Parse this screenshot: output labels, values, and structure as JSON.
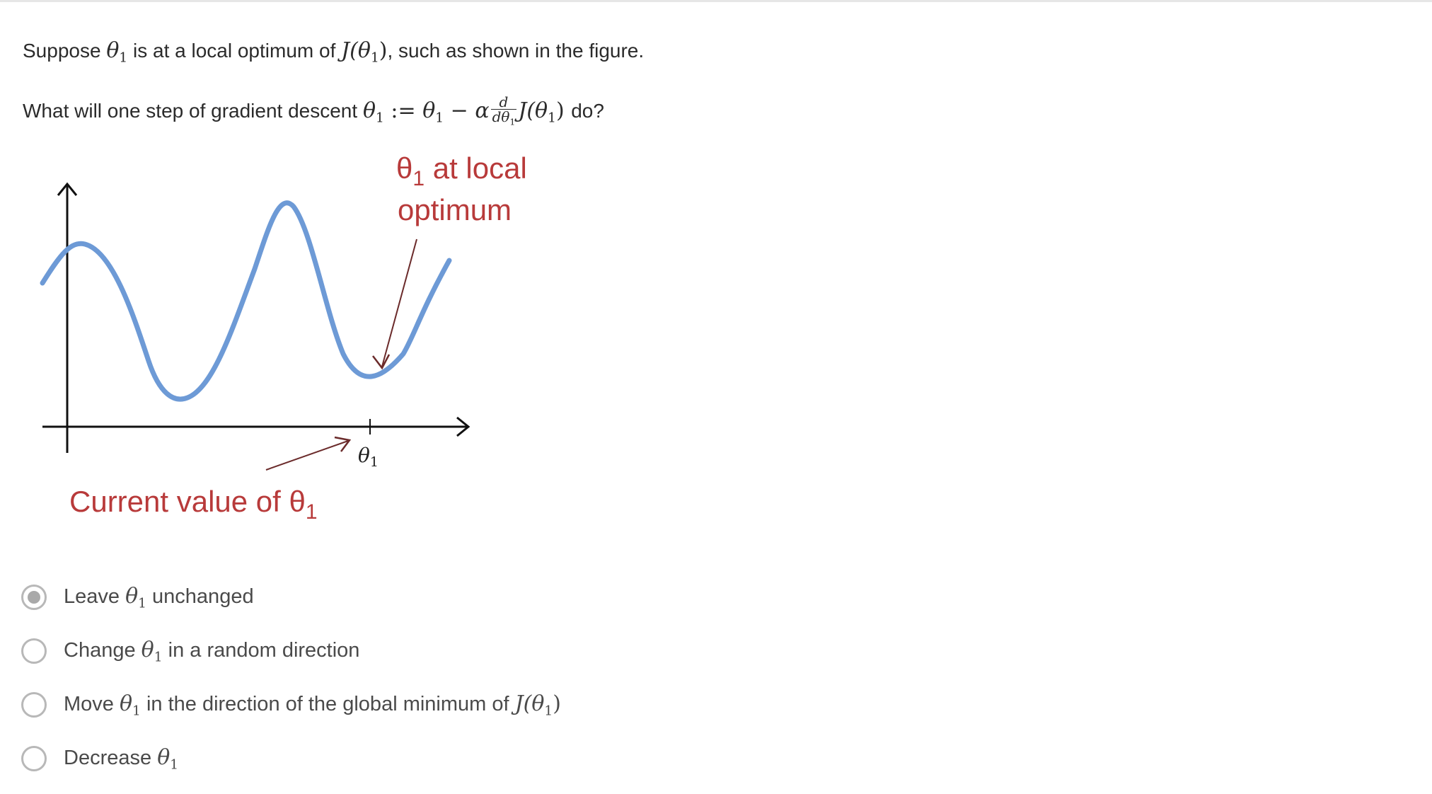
{
  "question": {
    "line1": {
      "prefix": "Suppose",
      "theta": "θ",
      "sub": "1",
      "middle": "is at a local optimum of",
      "J_open": "J(θ",
      "J_close": ")",
      "suffix": ", such as shown in the figure."
    },
    "line2": {
      "prefix": "What will one step of gradient descent",
      "theta": "θ",
      "sub": "1",
      "assign": ":=",
      "theta2": "θ",
      "sub2": "1",
      "minus_alpha": "− α",
      "frac_num": "d",
      "frac_den": "dθ",
      "frac_den_sub": "1",
      "J_open": "J(θ",
      "J_sub": "1",
      "J_close": ")",
      "suffix": "do?"
    }
  },
  "figure": {
    "annotation_top_line1": "θ",
    "annotation_top_sub": "1",
    "annotation_top_rest": " at local",
    "annotation_top_line2": "optimum",
    "annotation_bottom": "Current value of θ",
    "annotation_bottom_sub": "1",
    "axis_label": "θ",
    "axis_label_sub": "1",
    "curve_color": "#6d9ad6",
    "annotation_color": "#b83a3a",
    "arrow_color": "#6b2b2b"
  },
  "options": [
    {
      "prefix": "Leave",
      "theta": "θ",
      "sub": "1",
      "suffix": "unchanged",
      "selected": true
    },
    {
      "prefix": "Change",
      "theta": "θ",
      "sub": "1",
      "suffix": "in a random direction",
      "selected": false
    },
    {
      "prefix": "Move",
      "theta": "θ",
      "sub": "1",
      "suffix": "in the direction of the global minimum of",
      "tail_J": "J(θ",
      "tail_sub": "1",
      "tail_close": ")",
      "selected": false
    },
    {
      "prefix": "Decrease",
      "theta": "θ",
      "sub": "1",
      "suffix": "",
      "selected": false
    }
  ]
}
